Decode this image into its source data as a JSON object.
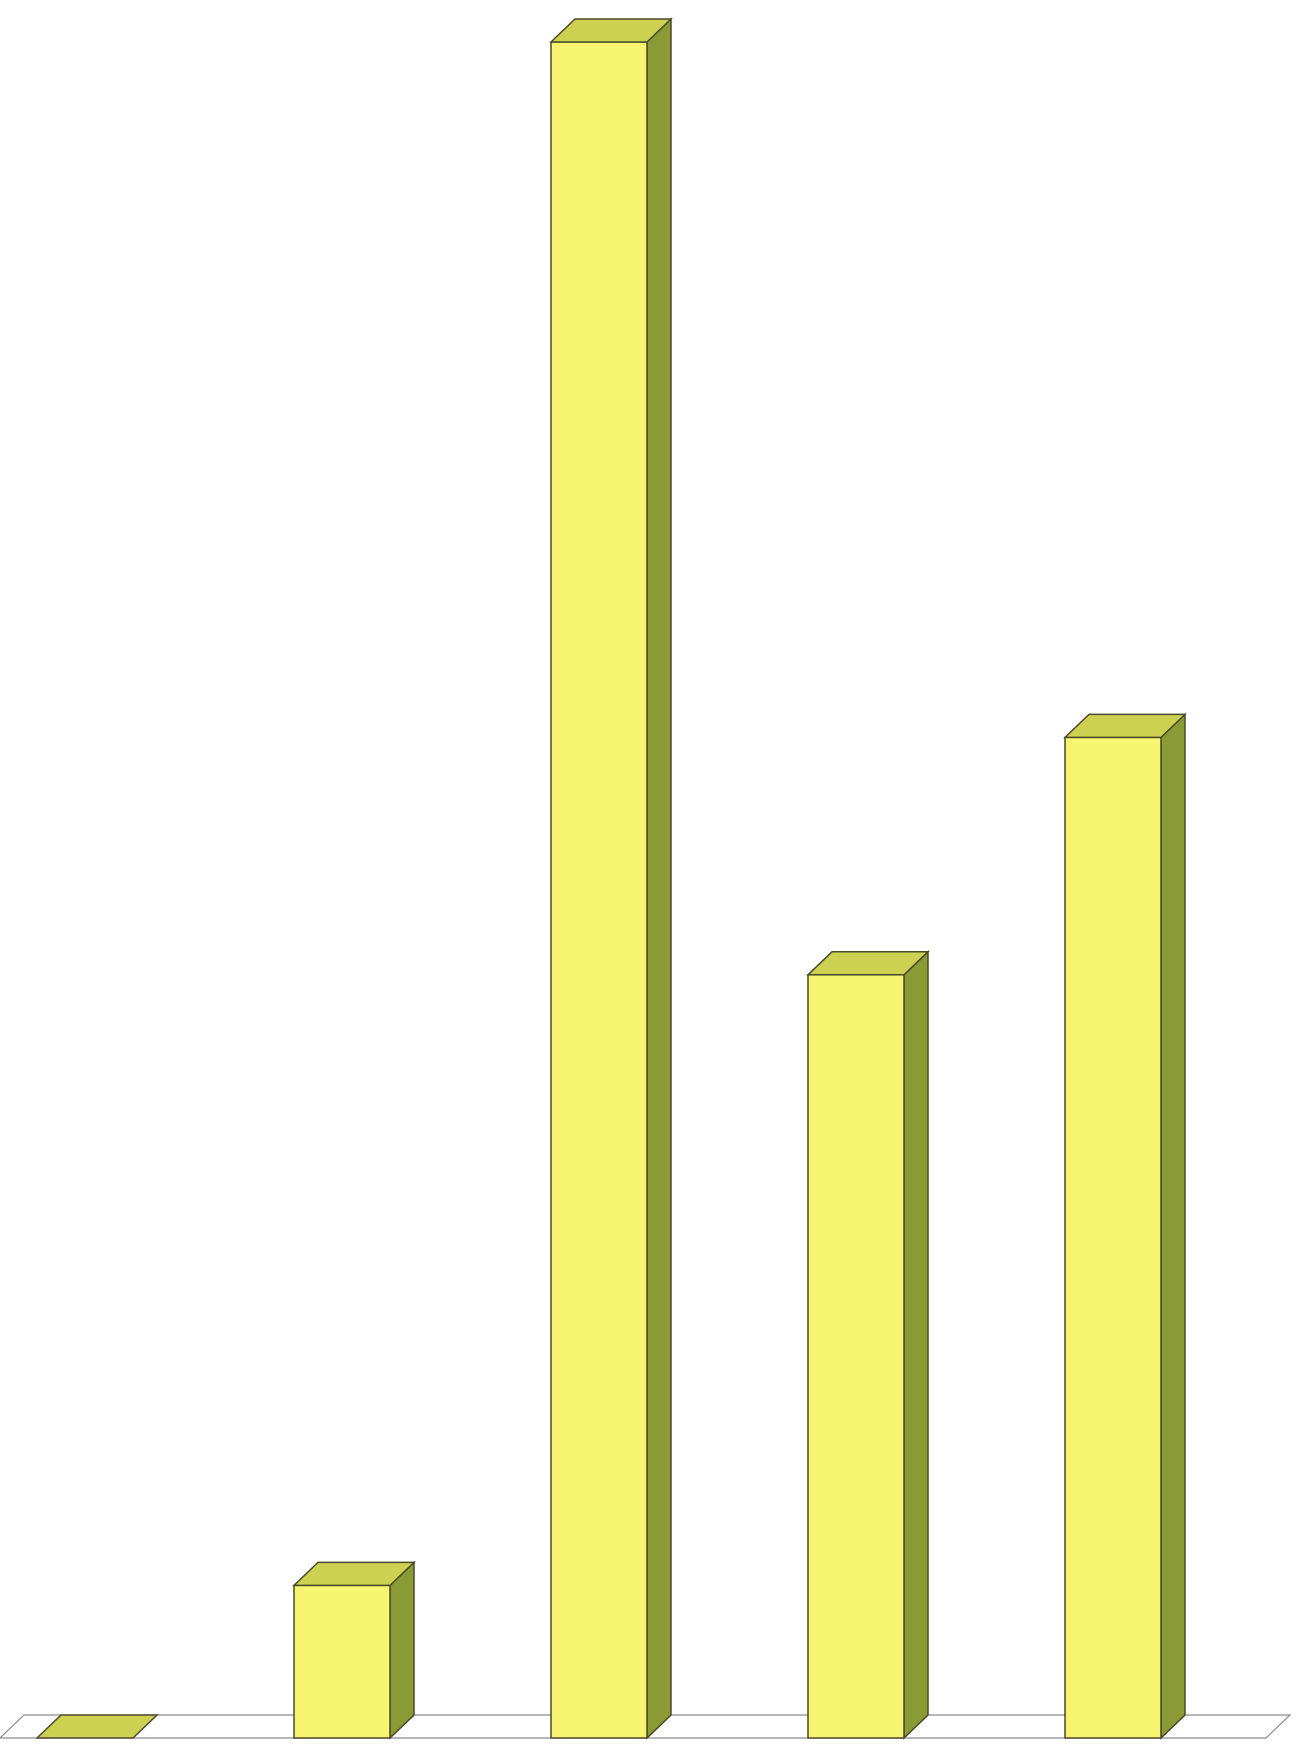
{
  "chart_data": {
    "type": "bar",
    "categories": [
      "",
      "",
      "",
      "",
      ""
    ],
    "values": [
      0,
      0.09,
      1.0,
      0.45,
      0.59
    ],
    "title": "",
    "xlabel": "",
    "ylabel": "",
    "ylim": [
      0,
      1.0
    ],
    "grid": false,
    "legend": "none",
    "style": "3d",
    "colors": {
      "bar_front": "#F7F46F",
      "bar_top": "#CCD152",
      "bar_side": "#8A9A35",
      "outline": "#4A4A2A",
      "floor": "#FFFFFF",
      "floor_line": "#8C8C8C"
    }
  }
}
